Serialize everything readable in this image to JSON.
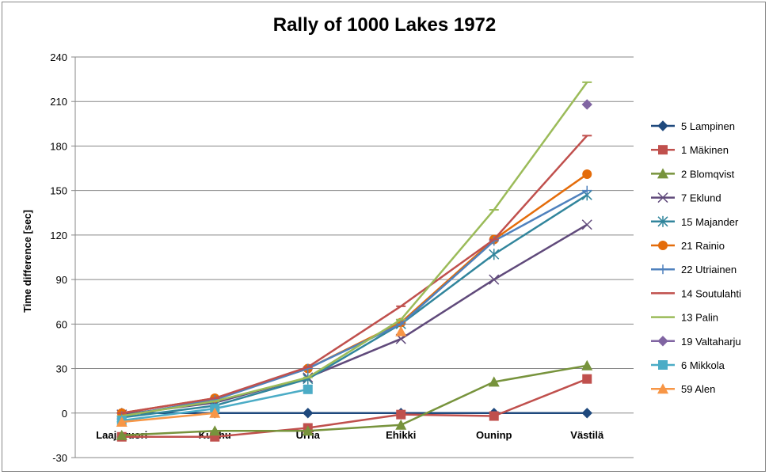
{
  "chart_data": {
    "type": "line",
    "title": "Rally of 1000 Lakes 1972",
    "xlabel": "",
    "ylabel": "Time difference [sec]",
    "ylim": [
      -30,
      240
    ],
    "yticks": [
      -30,
      0,
      30,
      60,
      90,
      120,
      150,
      180,
      210,
      240
    ],
    "grid": true,
    "legend": "right",
    "categories": [
      "Laajavuori",
      "Kuohu",
      "Urria",
      "Ehikki",
      "Ouninp",
      "Västilä"
    ],
    "series": [
      {
        "name": "5 Lampinen",
        "color": "#1F497D",
        "marker": "diamond",
        "values": [
          0,
          0,
          0,
          0,
          0,
          0
        ]
      },
      {
        "name": "1 Mäkinen",
        "color": "#C0504D",
        "marker": "square",
        "values": [
          -16,
          -16,
          -10,
          -1,
          -2,
          23
        ]
      },
      {
        "name": "2 Blomqvist",
        "color": "#77933C",
        "marker": "triangle",
        "values": [
          -15,
          -12,
          -12,
          -8,
          21,
          32
        ]
      },
      {
        "name": "7 Eklund",
        "color": "#604A7B",
        "marker": "x",
        "values": [
          -1,
          7,
          24,
          50,
          90,
          127
        ]
      },
      {
        "name": "15 Majander",
        "color": "#31859C",
        "marker": "star",
        "values": [
          -3,
          5,
          23,
          60,
          107,
          147
        ]
      },
      {
        "name": "21 Rainio",
        "color": "#E46C0A",
        "marker": "circle",
        "values": [
          0,
          10,
          30,
          61,
          117,
          161
        ]
      },
      {
        "name": "22 Utriainen",
        "color": "#4F81BD",
        "marker": "plus",
        "values": [
          -2,
          9,
          30,
          60,
          116,
          150
        ]
      },
      {
        "name": "14 Soutulahti",
        "color": "#C0504D",
        "marker": "dash",
        "values": [
          0,
          10,
          31,
          72,
          117,
          187
        ]
      },
      {
        "name": "13 Palin",
        "color": "#9BBB59",
        "marker": "dash",
        "values": [
          -2,
          8,
          24,
          63,
          137,
          223
        ]
      },
      {
        "name": "19 Valtaharju",
        "color": "#8064A2",
        "marker": "diamond",
        "values": [
          null,
          null,
          null,
          null,
          null,
          208
        ]
      },
      {
        "name": "6 Mikkola",
        "color": "#4BACC6",
        "marker": "square",
        "values": [
          -5,
          3,
          16,
          null,
          null,
          null
        ]
      },
      {
        "name": "59 Alen",
        "color": "#F79646",
        "marker": "triangle",
        "values": [
          -6,
          0,
          null,
          55,
          null,
          null
        ]
      }
    ]
  }
}
